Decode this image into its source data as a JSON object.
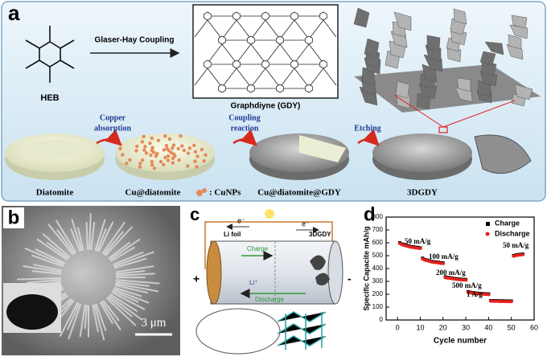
{
  "figure": {
    "a": {
      "label": "a",
      "monomer": "HEB",
      "reaction": "Glaser-Hay Coupling",
      "product": "Graphdiyne (GDY)",
      "step1": [
        "Copper",
        "absorption"
      ],
      "step2": [
        "Coupling",
        "reaction"
      ],
      "step3": "Etching",
      "stages": [
        "Diatomite",
        "Cu@diatomite",
        "Cu@diatomite@GDY",
        "3DGDY"
      ],
      "cu_legend": ": CuNPs"
    },
    "b": {
      "label": "b",
      "scale": "3 μm"
    },
    "c": {
      "label": "c",
      "anode": "Li foil",
      "cathode": "3DGDY",
      "charge": "Charge",
      "discharge": "Discharge",
      "ion": "Li⁺",
      "electron": "e⁻",
      "plus": "+",
      "minus": "-"
    }
  },
  "chart_data": {
    "type": "scatter",
    "panel_label": "d",
    "x_label": "Cycle number",
    "y_label": "Specific Capacite mAh/g",
    "x": [
      1,
      2,
      3,
      4,
      5,
      6,
      7,
      8,
      9,
      10,
      11,
      12,
      13,
      14,
      15,
      16,
      17,
      18,
      19,
      20,
      21,
      22,
      23,
      24,
      25,
      26,
      27,
      28,
      29,
      30,
      31,
      32,
      33,
      34,
      35,
      36,
      37,
      38,
      39,
      40,
      41,
      42,
      43,
      44,
      45,
      46,
      47,
      48,
      49,
      50,
      51,
      52,
      53,
      54,
      55
    ],
    "series": [
      {
        "name": "Charge",
        "color": "#000000",
        "marker": "square",
        "values": [
          600,
          590,
          585,
          580,
          575,
          570,
          568,
          565,
          563,
          560,
          480,
          470,
          465,
          460,
          455,
          452,
          450,
          448,
          445,
          443,
          335,
          330,
          328,
          325,
          322,
          320,
          318,
          316,
          315,
          314,
          220,
          215,
          212,
          210,
          208,
          206,
          205,
          204,
          203,
          202,
          150,
          150,
          149,
          149,
          148,
          148,
          148,
          147,
          147,
          147,
          500,
          505,
          508,
          510,
          512
        ]
      },
      {
        "name": "Discharge",
        "color": "#e8201c",
        "marker": "circle",
        "values": [
          595,
          585,
          580,
          575,
          570,
          566,
          563,
          560,
          558,
          556,
          475,
          466,
          461,
          456,
          451,
          448,
          446,
          444,
          441,
          439,
          330,
          326,
          324,
          321,
          318,
          316,
          314,
          312,
          311,
          310,
          215,
          211,
          208,
          206,
          204,
          202,
          201,
          200,
          199,
          198,
          146,
          146,
          145,
          145,
          144,
          144,
          144,
          143,
          143,
          143,
          496,
          501,
          504,
          506,
          508
        ]
      }
    ],
    "annotations": [
      "50 mA/g",
      "100 mA/g",
      "200 mA/g",
      "500 mA/g",
      "1 A/g",
      "50 mA/g"
    ],
    "xlim": [
      -5,
      60
    ],
    "xticks": [
      0,
      10,
      20,
      30,
      40,
      50,
      60
    ],
    "ylim": [
      0,
      800
    ],
    "yticks": [
      0,
      100,
      200,
      300,
      400,
      500,
      600,
      700,
      800
    ],
    "legend": "upper right"
  }
}
